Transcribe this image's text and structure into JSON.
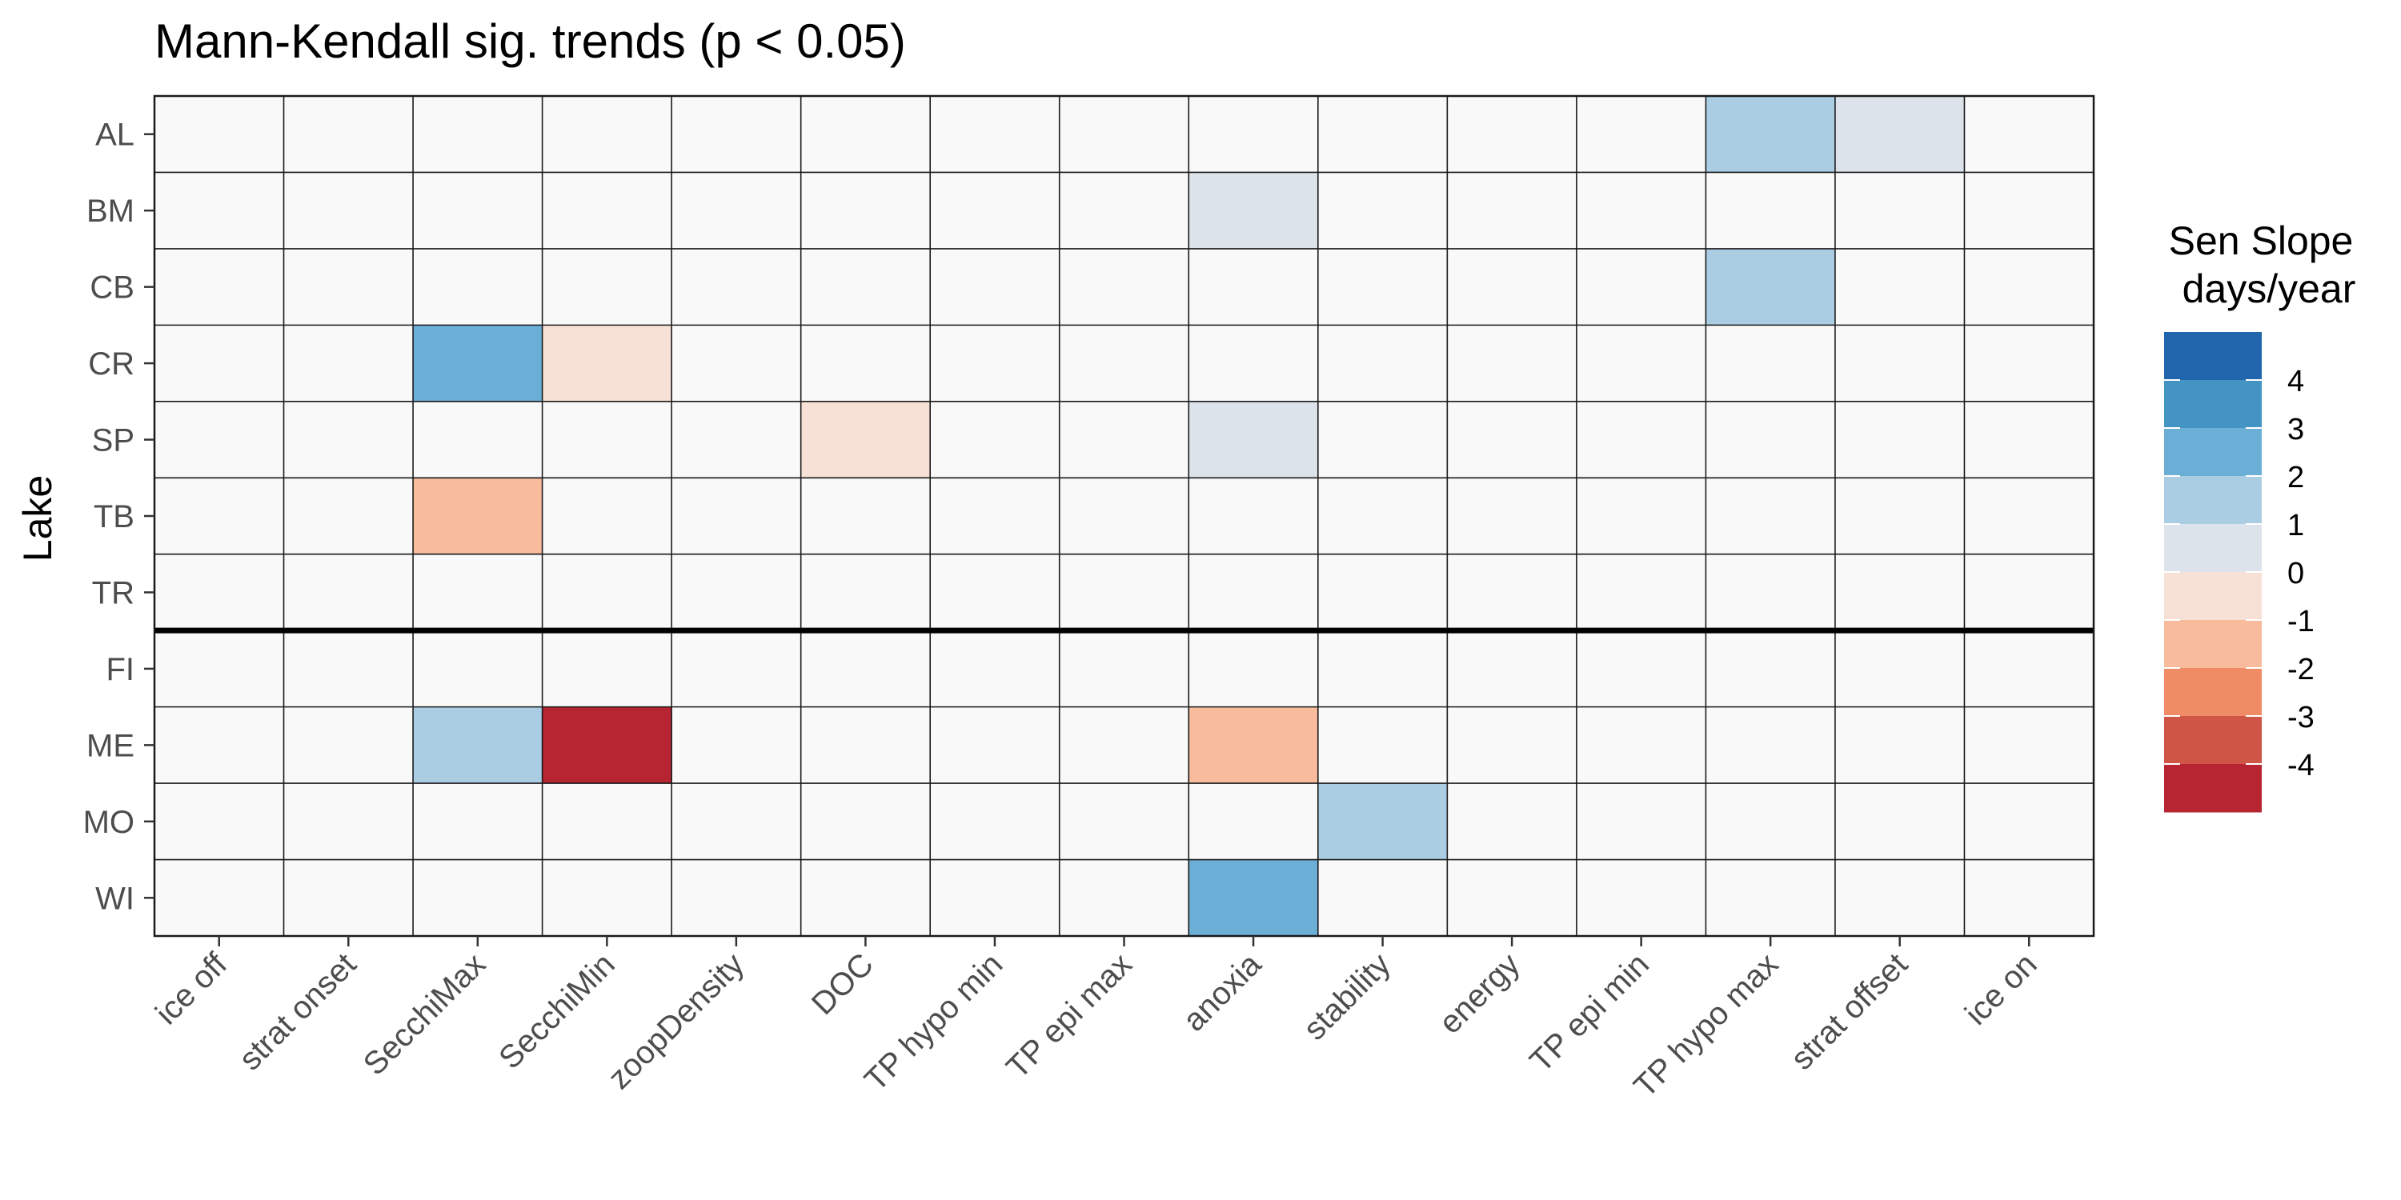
{
  "chart_data": {
    "type": "heatmap",
    "title": "Mann-Kendall sig. trends (p < 0.05)",
    "xlabel": "",
    "ylabel": "Lake",
    "x_categories": [
      "ice off",
      "strat onset",
      "SecchiMax",
      "SecchiMin",
      "zoopDensity",
      "DOC",
      "TP hypo min",
      "TP epi max",
      "anoxia",
      "stability",
      "energy",
      "TP epi min",
      "TP hypo max",
      "strat offset",
      "ice on"
    ],
    "y_categories": [
      "AL",
      "BM",
      "CB",
      "CR",
      "SP",
      "TB",
      "TR",
      "FI",
      "ME",
      "MO",
      "WI"
    ],
    "group_separator_after": "TR",
    "values": [
      [
        null,
        null,
        null,
        null,
        null,
        null,
        null,
        null,
        null,
        null,
        null,
        null,
        1,
        0.5,
        null
      ],
      [
        null,
        null,
        null,
        null,
        null,
        null,
        null,
        null,
        0.5,
        null,
        null,
        null,
        null,
        null,
        null
      ],
      [
        null,
        null,
        null,
        null,
        null,
        null,
        null,
        null,
        null,
        null,
        null,
        null,
        1,
        null,
        null
      ],
      [
        null,
        null,
        2,
        -0.5,
        null,
        null,
        null,
        null,
        null,
        null,
        null,
        null,
        null,
        null,
        null
      ],
      [
        null,
        null,
        null,
        null,
        null,
        -0.5,
        null,
        null,
        0.5,
        null,
        null,
        null,
        null,
        null,
        null
      ],
      [
        null,
        null,
        -1.5,
        null,
        null,
        null,
        null,
        null,
        null,
        null,
        null,
        null,
        null,
        null,
        null
      ],
      [
        null,
        null,
        null,
        null,
        null,
        null,
        null,
        null,
        null,
        null,
        null,
        null,
        null,
        null,
        null
      ],
      [
        null,
        null,
        null,
        null,
        null,
        null,
        null,
        null,
        null,
        null,
        null,
        null,
        null,
        null,
        null
      ],
      [
        null,
        null,
        1,
        -5,
        null,
        null,
        null,
        null,
        -1.5,
        null,
        null,
        null,
        null,
        null,
        null
      ],
      [
        null,
        null,
        null,
        null,
        null,
        null,
        null,
        null,
        null,
        1,
        null,
        null,
        null,
        null,
        null
      ],
      [
        null,
        null,
        null,
        null,
        null,
        null,
        null,
        null,
        2,
        null,
        null,
        null,
        null,
        null,
        null
      ]
    ],
    "na_color": "#f9f9f9",
    "grid": "on",
    "legend": {
      "title_lines": [
        "Sen Slope",
        "days/year"
      ],
      "position": "right",
      "breaks": [
        "4",
        "3",
        "2",
        "1",
        "0",
        "-1",
        "-2",
        "-3",
        "-4"
      ],
      "bin_lower_bounds": [
        4,
        3,
        2,
        1,
        0,
        -1,
        -2,
        -3,
        -4,
        -5
      ],
      "colors": [
        "#2166ac",
        "#4393c3",
        "#6baed6",
        "#abcde4",
        "#dce3ea",
        "#f7e0d5",
        "#f8bb9c",
        "#ef8c66",
        "#cf5547",
        "#b72532"
      ]
    }
  }
}
